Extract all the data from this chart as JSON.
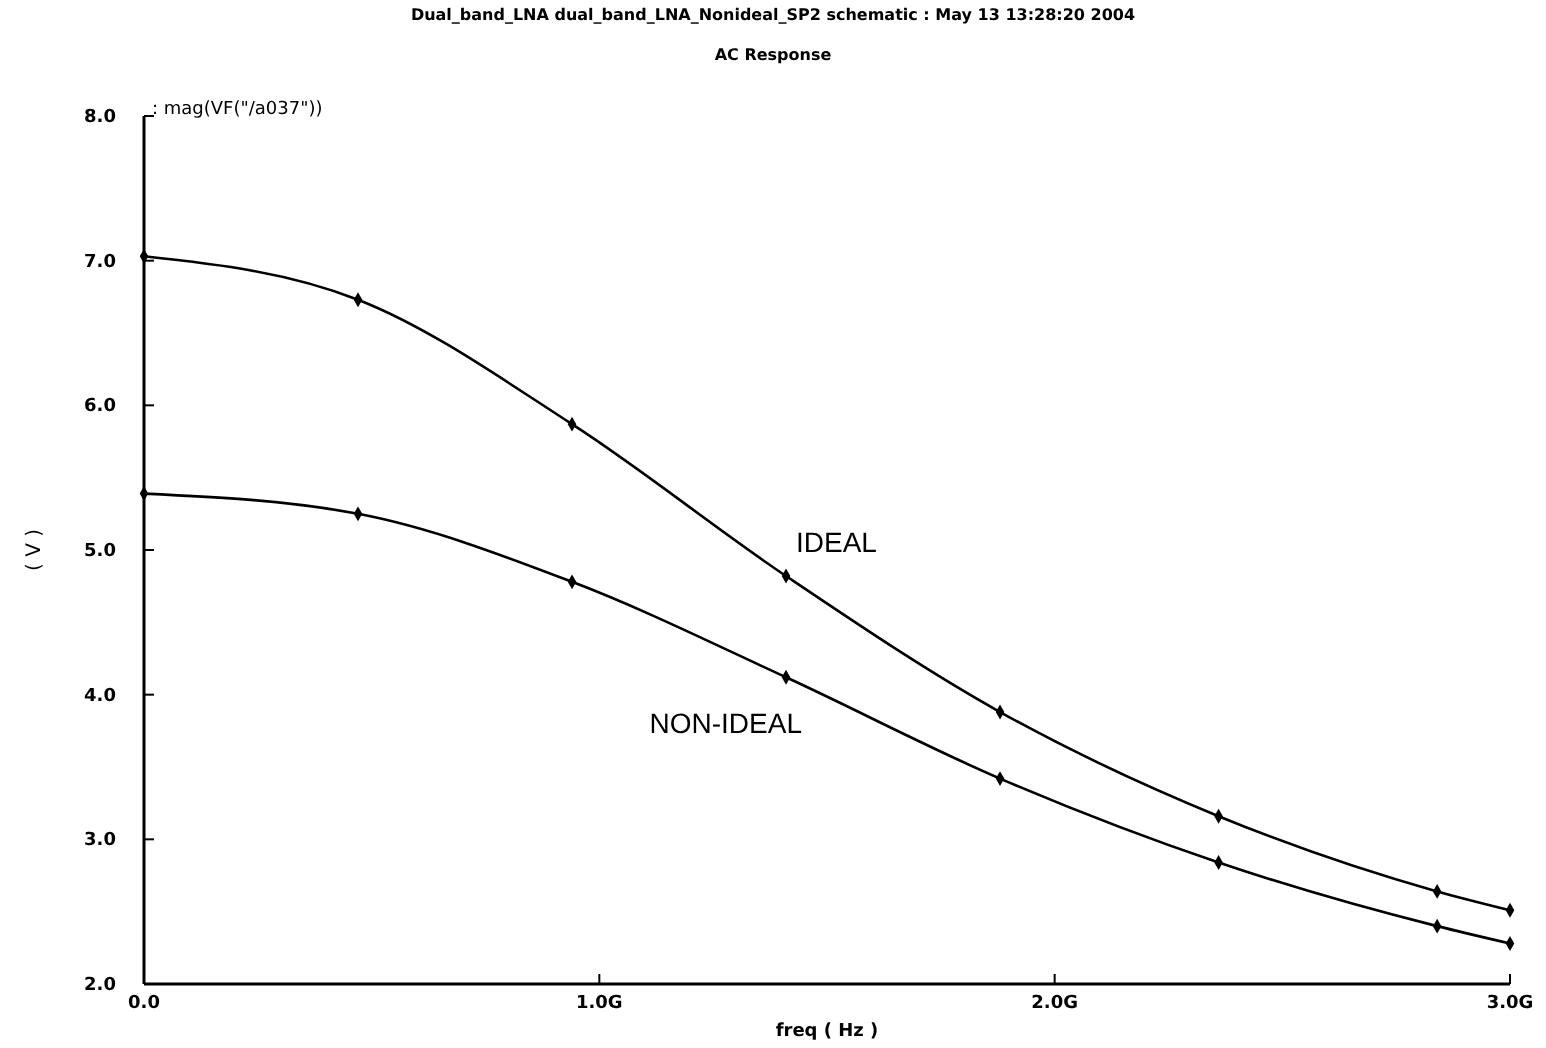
{
  "chart_data": {
    "type": "line",
    "title": "Dual_band_LNA dual_band_LNA_Nonideal_SP2 schematic : May 13 13:28:20 2004",
    "subtitle": "AC Response",
    "xlabel": "freq ( Hz )",
    "ylabel": "( V )",
    "annotations": [
      ": mag(VF(\"/a037\"))"
    ],
    "x": [
      0,
      0.47,
      0.94,
      1.41,
      1.88,
      2.36,
      2.84,
      3.0
    ],
    "series": [
      {
        "name": "IDEAL",
        "color": "#000000",
        "values": [
          7.03,
          6.73,
          5.87,
          4.82,
          3.88,
          3.16,
          2.64,
          2.51
        ]
      },
      {
        "name": "NON-IDEAL",
        "color": "#000000",
        "values": [
          5.39,
          5.25,
          4.78,
          4.12,
          3.42,
          2.84,
          2.4,
          2.28
        ]
      }
    ],
    "xlim": [
      0,
      3.0
    ],
    "xticks": [
      {
        "value": 0,
        "label": "0.0"
      },
      {
        "value": 1,
        "label": "1.0G"
      },
      {
        "value": 2,
        "label": "2.0G"
      },
      {
        "value": 3,
        "label": "3.0G"
      }
    ],
    "ylim": [
      2.0,
      8.0
    ],
    "yticks": [
      {
        "value": 2,
        "label": "2.0"
      },
      {
        "value": 3,
        "label": "3.0"
      },
      {
        "value": 4,
        "label": "4.0"
      },
      {
        "value": 5,
        "label": "5.0"
      },
      {
        "value": 6,
        "label": "6.0"
      },
      {
        "value": 7,
        "label": "7.0"
      },
      {
        "value": 8,
        "label": "8.0"
      }
    ],
    "grid": false,
    "legend": false,
    "marker": "diamond",
    "line_style": "solid"
  }
}
